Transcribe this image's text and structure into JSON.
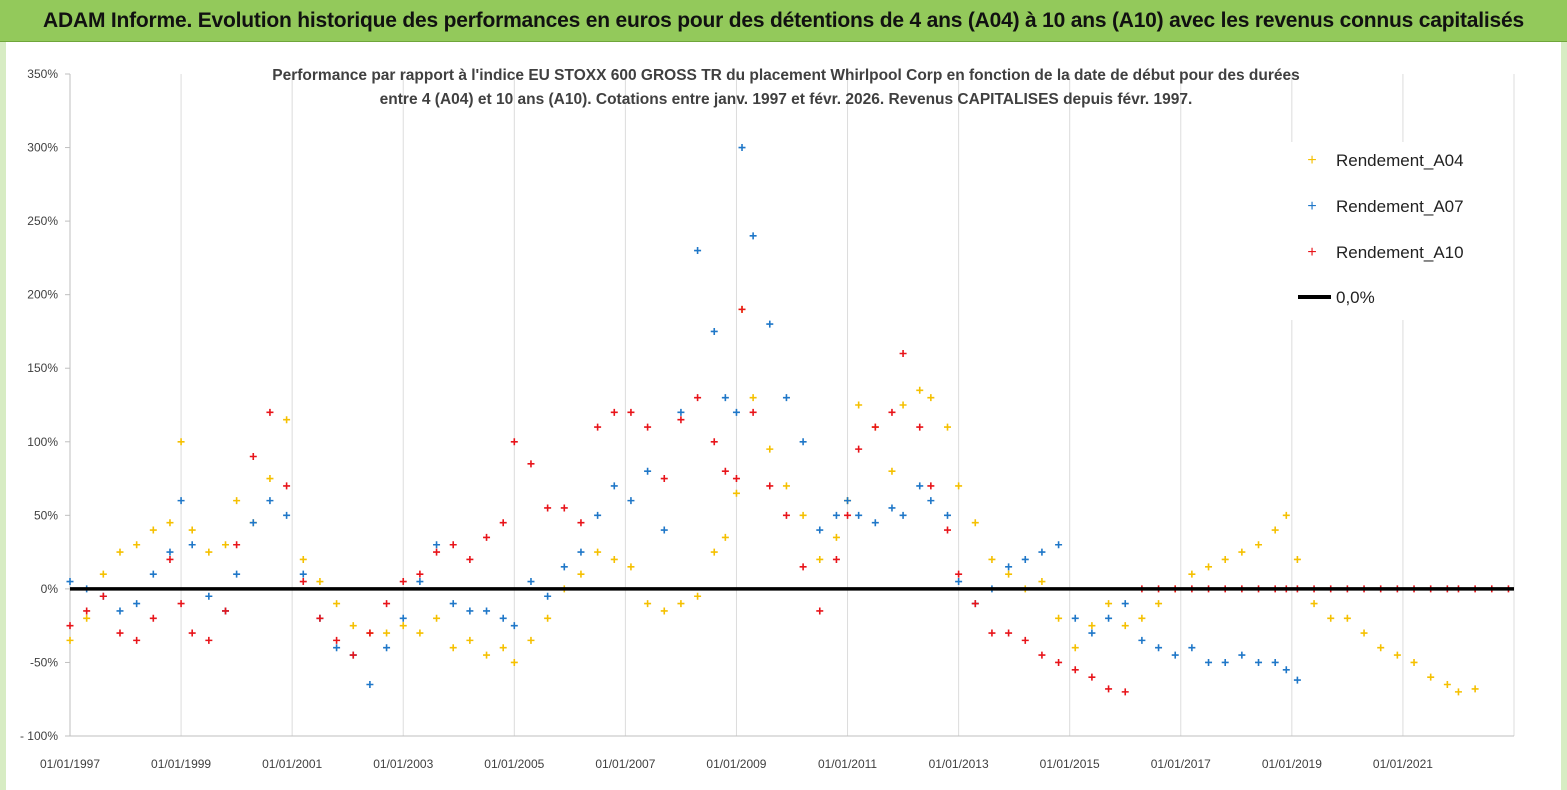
{
  "banner": {
    "title": "ADAM Informe. Evolution historique des performances en euros pour des détentions de 4 ans (A04) à 10 ans (A10) avec les revenus connus capitalisés"
  },
  "colors": {
    "banner_bg": "#93c95b",
    "a04": "#f5c000",
    "a07": "#1f77c8",
    "a10": "#e8141a",
    "zero": "#000000"
  },
  "chart_data": {
    "type": "scatter",
    "title": [
      "Performance par rapport à l'indice EU STOXX 600 GROSS TR  du placement Whirlpool Corp en fonction de la date de début pour des durées",
      "entre 4 (A04) et 10 ans (A10). Cotations entre janv. 1997 et févr. 2026. Revenus CAPITALISES depuis févr. 1997."
    ],
    "xlabel": "",
    "ylabel": "",
    "xlim": [
      1997.0,
      2023.0
    ],
    "ylim": [
      -100,
      350
    ],
    "y_ticks": [
      -100,
      -50,
      0,
      50,
      100,
      150,
      200,
      250,
      300,
      350
    ],
    "y_tick_labels": [
      "- 100%",
      "-50%",
      "0%",
      "50%",
      "100%",
      "150%",
      "200%",
      "250%",
      "300%",
      "350%"
    ],
    "x_ticks": [
      1997,
      1999,
      2001,
      2003,
      2005,
      2007,
      2009,
      2011,
      2013,
      2015,
      2017,
      2019,
      2021
    ],
    "x_tick_labels": [
      "01/01/1997",
      "01/01/1999",
      "01/01/2001",
      "01/01/2003",
      "01/01/2005",
      "01/01/2007",
      "01/01/2009",
      "01/01/2011",
      "01/01/2013",
      "01/01/2015",
      "01/01/2017",
      "01/01/2019",
      "01/01/2021"
    ],
    "grid": "vertical",
    "legend_position": "top-right",
    "legend": [
      "Rendement_A04",
      "Rendement_A07",
      "Rendement_A10",
      "0,0%"
    ],
    "series": [
      {
        "name": "Rendement_A04",
        "marker": "+",
        "x": [
          1997.0,
          1997.3,
          1997.6,
          1997.9,
          1998.2,
          1998.5,
          1998.8,
          1999.0,
          1999.2,
          1999.5,
          1999.8,
          2000.0,
          2000.3,
          2000.6,
          2000.9,
          2001.2,
          2001.5,
          2001.8,
          2002.1,
          2002.4,
          2002.7,
          2003.0,
          2003.3,
          2003.6,
          2003.9,
          2004.2,
          2004.5,
          2004.8,
          2005.0,
          2005.3,
          2005.6,
          2005.9,
          2006.2,
          2006.5,
          2006.8,
          2007.1,
          2007.4,
          2007.7,
          2008.0,
          2008.3,
          2008.6,
          2008.8,
          2009.0,
          2009.1,
          2009.3,
          2009.6,
          2009.9,
          2010.2,
          2010.5,
          2010.8,
          2011.0,
          2011.2,
          2011.5,
          2011.8,
          2012.0,
          2012.3,
          2012.5,
          2012.8,
          2013.0,
          2013.3,
          2013.6,
          2013.9,
          2014.2,
          2014.5,
          2014.8,
          2015.1,
          2015.4,
          2015.7,
          2016.0,
          2016.3,
          2016.6,
          2016.9,
          2017.2,
          2017.5,
          2017.8,
          2018.1,
          2018.4,
          2018.7,
          2018.9,
          2019.1,
          2019.4,
          2019.7,
          2020.0,
          2020.3,
          2020.6,
          2020.9,
          2021.2,
          2021.5,
          2021.8,
          2022.0,
          2022.3
        ],
        "y": [
          -35,
          -20,
          10,
          25,
          30,
          40,
          45,
          100,
          40,
          25,
          30,
          60,
          45,
          75,
          115,
          20,
          5,
          -10,
          -25,
          -30,
          -30,
          -25,
          -30,
          -20,
          -40,
          -35,
          -45,
          -40,
          -50,
          -35,
          -20,
          0,
          10,
          25,
          20,
          15,
          -10,
          -15,
          -10,
          -5,
          25,
          35,
          65,
          190,
          130,
          95,
          70,
          50,
          20,
          35,
          60,
          125,
          110,
          80,
          125,
          135,
          130,
          110,
          70,
          45,
          20,
          10,
          0,
          5,
          -20,
          -40,
          -25,
          -10,
          -25,
          -20,
          -10,
          0,
          10,
          15,
          20,
          25,
          30,
          40,
          50,
          20,
          -10,
          -20,
          -20,
          -30,
          -40,
          -45,
          -50,
          -60,
          -65,
          -70,
          -68
        ]
      },
      {
        "name": "Rendement_A07",
        "marker": "+",
        "x": [
          1997.0,
          1997.3,
          1997.6,
          1997.9,
          1998.2,
          1998.5,
          1998.8,
          1999.0,
          1999.2,
          1999.5,
          1999.8,
          2000.0,
          2000.3,
          2000.6,
          2000.9,
          2001.2,
          2001.5,
          2001.8,
          2002.1,
          2002.4,
          2002.7,
          2003.0,
          2003.3,
          2003.6,
          2003.9,
          2004.2,
          2004.5,
          2004.8,
          2005.0,
          2005.3,
          2005.6,
          2005.9,
          2006.2,
          2006.5,
          2006.8,
          2007.1,
          2007.4,
          2007.7,
          2008.0,
          2008.3,
          2008.6,
          2008.8,
          2009.0,
          2009.1,
          2009.3,
          2009.6,
          2009.9,
          2010.2,
          2010.5,
          2010.8,
          2011.0,
          2011.2,
          2011.5,
          2011.8,
          2012.0,
          2012.3,
          2012.5,
          2012.8,
          2013.0,
          2013.3,
          2013.6,
          2013.9,
          2014.2,
          2014.5,
          2014.8,
          2015.1,
          2015.4,
          2015.7,
          2016.0,
          2016.3,
          2016.6,
          2016.9,
          2017.2,
          2017.5,
          2017.8,
          2018.1,
          2018.4,
          2018.7,
          2018.9,
          2019.1
        ],
        "y": [
          5,
          0,
          -5,
          -15,
          -10,
          10,
          25,
          60,
          30,
          -5,
          -15,
          10,
          45,
          60,
          50,
          10,
          -20,
          -40,
          -45,
          -65,
          -40,
          -20,
          5,
          30,
          -10,
          -15,
          -15,
          -20,
          -25,
          5,
          -5,
          15,
          25,
          50,
          70,
          60,
          80,
          40,
          120,
          230,
          175,
          130,
          120,
          300,
          240,
          180,
          130,
          100,
          40,
          50,
          60,
          50,
          45,
          55,
          50,
          70,
          60,
          50,
          5,
          -10,
          0,
          15,
          20,
          25,
          30,
          -20,
          -30,
          -20,
          -10,
          -35,
          -40,
          -45,
          -40,
          -50,
          -50,
          -45,
          -50,
          -50,
          -55,
          -62
        ]
      },
      {
        "name": "Rendement_A10",
        "marker": "+",
        "x": [
          1997.0,
          1997.3,
          1997.6,
          1997.9,
          1998.2,
          1998.5,
          1998.8,
          1999.0,
          1999.2,
          1999.5,
          1999.8,
          2000.0,
          2000.3,
          2000.6,
          2000.9,
          2001.2,
          2001.5,
          2001.8,
          2002.1,
          2002.4,
          2002.7,
          2003.0,
          2003.3,
          2003.6,
          2003.9,
          2004.2,
          2004.5,
          2004.8,
          2005.0,
          2005.3,
          2005.6,
          2005.9,
          2006.2,
          2006.5,
          2006.8,
          2007.1,
          2007.4,
          2007.7,
          2008.0,
          2008.3,
          2008.6,
          2008.8,
          2009.0,
          2009.1,
          2009.3,
          2009.6,
          2009.9,
          2010.2,
          2010.5,
          2010.8,
          2011.0,
          2011.2,
          2011.5,
          2011.8,
          2012.0,
          2012.3,
          2012.5,
          2012.8,
          2013.0,
          2013.3,
          2013.6,
          2013.9,
          2014.2,
          2014.5,
          2014.8,
          2015.1,
          2015.4,
          2015.7,
          2016.0,
          2016.3,
          2016.6,
          2016.9,
          2017.2,
          2017.5,
          2017.8,
          2018.1,
          2018.4,
          2018.7,
          2018.9,
          2019.1,
          2019.4,
          2019.7,
          2020.0,
          2020.3,
          2020.6,
          2020.9,
          2021.2,
          2021.5,
          2021.8,
          2022.0,
          2022.3,
          2022.6,
          2022.9
        ],
        "y": [
          -25,
          -15,
          -5,
          -30,
          -35,
          -20,
          20,
          -10,
          -30,
          -35,
          -15,
          30,
          90,
          120,
          70,
          5,
          -20,
          -35,
          -45,
          -30,
          -10,
          5,
          10,
          25,
          30,
          20,
          35,
          45,
          100,
          85,
          55,
          55,
          45,
          110,
          120,
          120,
          110,
          75,
          115,
          130,
          100,
          80,
          75,
          190,
          120,
          70,
          50,
          15,
          -15,
          20,
          50,
          95,
          110,
          120,
          160,
          110,
          70,
          40,
          10,
          -10,
          -30,
          -30,
          -35,
          -45,
          -50,
          -55,
          -60,
          -68,
          -70,
          0,
          0,
          0,
          0,
          0,
          0,
          0,
          0,
          0,
          0,
          0,
          0,
          0,
          0,
          0,
          0,
          0,
          0,
          0,
          0,
          0,
          0,
          0,
          0
        ]
      },
      {
        "name": "0,0%",
        "type": "line",
        "x": [
          1997.0,
          2023.0
        ],
        "y": [
          0,
          0
        ]
      }
    ]
  }
}
